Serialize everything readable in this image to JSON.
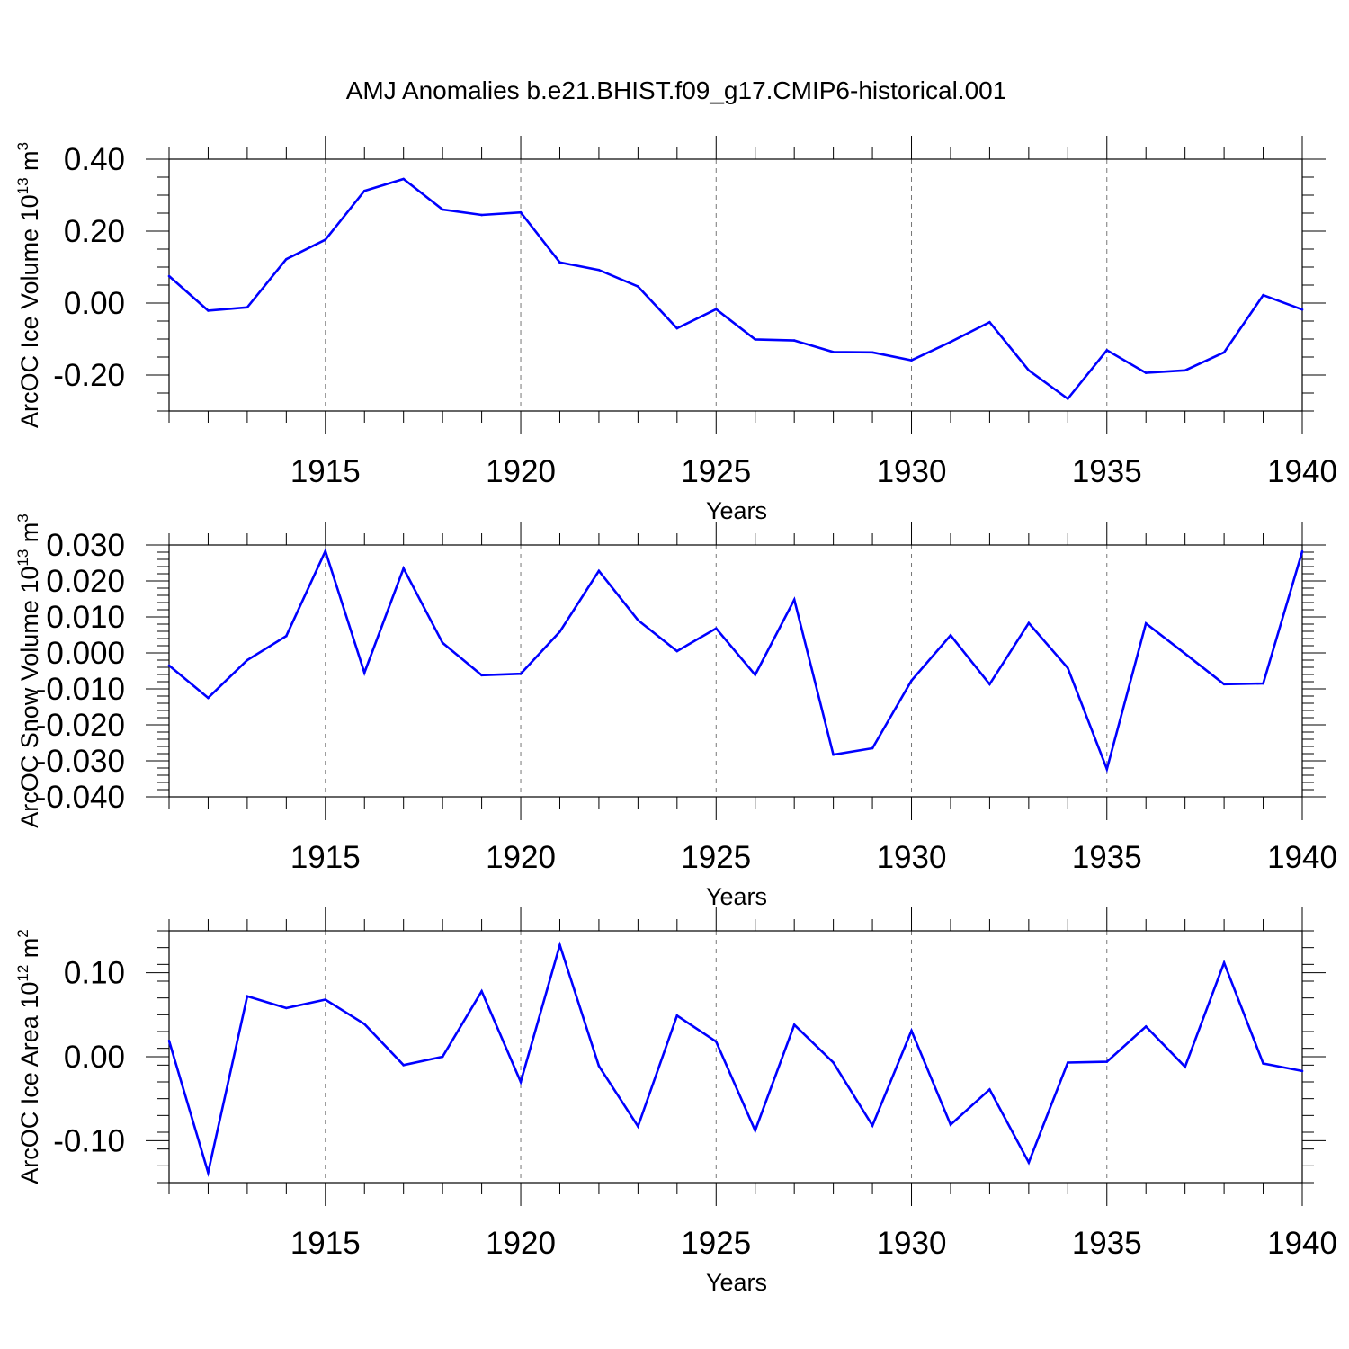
{
  "title": "AMJ Anomalies b.e21.BHIST.f09_g17.CMIP6-historical.001",
  "colors": {
    "series": "#0000ff",
    "axis": "#000000",
    "grid": "#777777"
  },
  "chart_data": [
    {
      "type": "line",
      "title": "AMJ Anomalies b.e21.BHIST.f09_g17.CMIP6-historical.001",
      "xlabel": "Years",
      "ylabel": {
        "text": "ArcOC Ice Volume 10",
        "exp": "13",
        "unit": " m",
        "unit_exp": "3"
      },
      "xlim": [
        1911,
        1940
      ],
      "ylim": [
        -0.3,
        0.4
      ],
      "grid": "vertical dashed at labeled years",
      "x_ticks": [
        1915,
        1920,
        1925,
        1930,
        1935,
        1940
      ],
      "x_tick_labels": [
        "1915",
        "1920",
        "1925",
        "1930",
        "1935",
        "1940"
      ],
      "y_ticks": [
        -0.2,
        0.0,
        0.2,
        0.4
      ],
      "y_tick_labels": [
        "-0.20",
        "0.00",
        "0.20",
        "0.40"
      ],
      "y_minor_step": 0.05,
      "series": [
        {
          "name": "ArcOC Ice Volume",
          "x": [
            1911,
            1912,
            1913,
            1914,
            1915,
            1916,
            1917,
            1918,
            1919,
            1920,
            1921,
            1922,
            1923,
            1924,
            1925,
            1926,
            1927,
            1928,
            1929,
            1930,
            1931,
            1932,
            1933,
            1934,
            1935,
            1936,
            1937,
            1938,
            1939,
            1940
          ],
          "values": [
            0.075,
            -0.021,
            -0.012,
            0.122,
            0.176,
            0.312,
            0.345,
            0.26,
            0.245,
            0.252,
            0.113,
            0.092,
            0.046,
            -0.07,
            -0.017,
            -0.101,
            -0.104,
            -0.136,
            -0.137,
            -0.159,
            -0.108,
            -0.053,
            -0.187,
            -0.266,
            -0.131,
            -0.194,
            -0.187,
            -0.137,
            0.022,
            -0.018
          ]
        }
      ]
    },
    {
      "type": "line",
      "xlabel": "Years",
      "ylabel": {
        "text": "ArcOC Snow Volume 10",
        "exp": "13",
        "unit": " m",
        "unit_exp": "3"
      },
      "xlim": [
        1911,
        1940
      ],
      "ylim": [
        -0.04,
        0.03
      ],
      "grid": "vertical dashed at labeled years",
      "x_ticks": [
        1915,
        1920,
        1925,
        1930,
        1935,
        1940
      ],
      "x_tick_labels": [
        "1915",
        "1920",
        "1925",
        "1930",
        "1935",
        "1940"
      ],
      "y_ticks": [
        -0.04,
        -0.03,
        -0.02,
        -0.01,
        0.0,
        0.01,
        0.02,
        0.03
      ],
      "y_tick_labels": [
        "-0.040",
        "-0.030",
        "-0.020",
        "-0.010",
        "0.000",
        "0.010",
        "0.020",
        "0.030"
      ],
      "y_minor_step": 0.002,
      "series": [
        {
          "name": "ArcOC Snow Volume",
          "x": [
            1911,
            1912,
            1913,
            1914,
            1915,
            1916,
            1917,
            1918,
            1919,
            1920,
            1921,
            1922,
            1923,
            1924,
            1925,
            1926,
            1927,
            1928,
            1929,
            1930,
            1931,
            1932,
            1933,
            1934,
            1935,
            1936,
            1937,
            1938,
            1939,
            1940
          ],
          "values": [
            -0.0035,
            -0.0125,
            -0.002,
            0.0047,
            0.0283,
            -0.0055,
            0.0235,
            0.0028,
            -0.0062,
            -0.0058,
            0.0059,
            0.0228,
            0.0091,
            0.0005,
            0.0068,
            -0.0061,
            0.0148,
            -0.0283,
            -0.0265,
            -0.0077,
            0.0049,
            -0.0087,
            0.0083,
            -0.0042,
            -0.0323,
            0.0082,
            -0.0002,
            -0.0087,
            -0.0085,
            0.0282
          ]
        }
      ]
    },
    {
      "type": "line",
      "xlabel": "Years",
      "ylabel": {
        "text": "ArcOC Ice Area 10",
        "exp": "12",
        "unit": " m",
        "unit_exp": "2"
      },
      "xlim": [
        1911,
        1940
      ],
      "ylim": [
        -0.15,
        0.15
      ],
      "grid": "vertical dashed at labeled years",
      "x_ticks": [
        1915,
        1920,
        1925,
        1930,
        1935,
        1940
      ],
      "x_tick_labels": [
        "1915",
        "1920",
        "1925",
        "1930",
        "1935",
        "1940"
      ],
      "y_ticks": [
        -0.1,
        0.0,
        0.1
      ],
      "y_tick_labels": [
        "-0.10",
        "0.00",
        "0.10"
      ],
      "y_minor_step": 0.02,
      "series": [
        {
          "name": "ArcOC Ice Area",
          "x": [
            1911,
            1912,
            1913,
            1914,
            1915,
            1916,
            1917,
            1918,
            1919,
            1920,
            1921,
            1922,
            1923,
            1924,
            1925,
            1926,
            1927,
            1928,
            1929,
            1930,
            1931,
            1932,
            1933,
            1934,
            1935,
            1936,
            1937,
            1938,
            1939,
            1940
          ],
          "values": [
            0.019,
            -0.138,
            0.072,
            0.058,
            0.068,
            0.039,
            -0.01,
            0.0,
            0.078,
            -0.03,
            0.133,
            -0.011,
            -0.083,
            0.049,
            0.018,
            -0.088,
            0.038,
            -0.007,
            -0.082,
            0.031,
            -0.081,
            -0.039,
            -0.126,
            -0.007,
            -0.006,
            0.036,
            -0.012,
            0.112,
            -0.008,
            -0.017
          ]
        }
      ]
    }
  ]
}
